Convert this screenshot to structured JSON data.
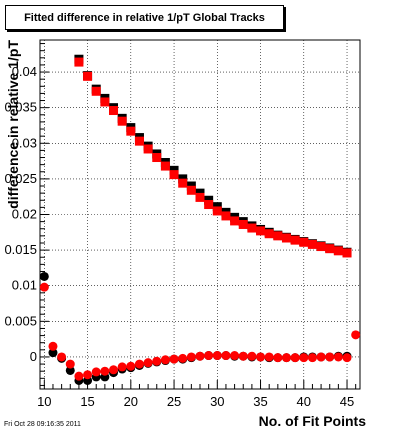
{
  "title": "Fitted difference in relative 1/pT  Global Tracks",
  "footer": "Fri Oct 28 09:16:35 2011",
  "chart_data": {
    "type": "scatter",
    "title": "Fitted difference in relative 1/pT  Global Tracks",
    "xlabel": "No. of Fit Points",
    "ylabel": "difference in relative 1/pT",
    "xlim": [
      9.5,
      46.5
    ],
    "ylim": [
      -0.0045,
      0.0445
    ],
    "xticks": [
      10,
      15,
      20,
      25,
      30,
      35,
      40,
      45
    ],
    "yticks": [
      0,
      0.005,
      0.01,
      0.015,
      0.02,
      0.025,
      0.03,
      0.035,
      0.04
    ],
    "ytick_labels": [
      "0",
      "0.005",
      "0.01",
      "0.015",
      "0.02",
      "0.025",
      "0.03",
      "0.035",
      "0.04"
    ],
    "grid": true,
    "colors": {
      "black": "#000000",
      "red": "#ff0000"
    },
    "series": [
      {
        "color": "black",
        "marker": "square",
        "x": [
          14,
          15,
          16,
          17,
          18,
          19,
          20,
          21,
          22,
          23,
          24,
          25,
          26,
          27,
          28,
          29,
          30,
          31,
          32,
          33,
          34,
          35,
          36,
          37,
          38,
          39,
          40,
          41,
          42,
          43,
          44,
          45
        ],
        "y": [
          0.0418,
          0.0395,
          0.0376,
          0.0363,
          0.035,
          0.0335,
          0.0322,
          0.0308,
          0.0296,
          0.0285,
          0.0273,
          0.0262,
          0.025,
          0.024,
          0.023,
          0.022,
          0.0211,
          0.0203,
          0.0196,
          0.019,
          0.0184,
          0.0179,
          0.0175,
          0.0171,
          0.0168,
          0.0165,
          0.0162,
          0.0159,
          0.0156,
          0.0153,
          0.015,
          0.0147
        ]
      },
      {
        "color": "red",
        "marker": "square",
        "x": [
          14,
          15,
          16,
          17,
          18,
          19,
          20,
          21,
          22,
          23,
          24,
          25,
          26,
          27,
          28,
          29,
          30,
          31,
          32,
          33,
          34,
          35,
          36,
          37,
          38,
          39,
          40,
          41,
          42,
          43,
          44,
          45
        ],
        "y": [
          0.0414,
          0.0394,
          0.0373,
          0.0358,
          0.0346,
          0.0331,
          0.0317,
          0.0303,
          0.0292,
          0.028,
          0.0268,
          0.0256,
          0.0244,
          0.0234,
          0.0224,
          0.0214,
          0.0205,
          0.0198,
          0.0191,
          0.0186,
          0.0181,
          0.0177,
          0.0173,
          0.017,
          0.0167,
          0.0164,
          0.0161,
          0.0158,
          0.0155,
          0.0152,
          0.0149,
          0.0146
        ]
      },
      {
        "color": "black",
        "marker": "circle",
        "x": [
          10,
          11,
          12,
          13,
          14,
          15,
          16,
          17,
          18,
          19,
          20,
          21,
          22,
          23,
          24,
          25,
          26,
          27,
          28,
          29,
          30,
          31,
          32,
          33,
          34,
          35,
          36,
          37,
          38,
          39,
          40,
          41,
          42,
          43,
          44,
          45
        ],
        "y": [
          0.0113,
          0.0006,
          -0.0002,
          -0.0019,
          -0.0033,
          -0.0033,
          -0.0028,
          -0.0028,
          -0.0022,
          -0.0017,
          -0.0015,
          -0.0012,
          -0.0009,
          -0.0007,
          -0.0005,
          -0.0003,
          -0.0003,
          -0.0001,
          0.0001,
          0.0002,
          0.0002,
          0.0002,
          0.0001,
          0.0001,
          0.0,
          0.0,
          -0.0001,
          -0.0001,
          -0.0001,
          -0.0001,
          0.0,
          0.0,
          0.0,
          0.0,
          0.0001,
          0.0001
        ]
      },
      {
        "color": "red",
        "marker": "circle",
        "x": [
          10,
          11,
          12,
          13,
          14,
          15,
          16,
          17,
          18,
          19,
          20,
          21,
          22,
          23,
          24,
          25,
          26,
          27,
          28,
          29,
          30,
          31,
          32,
          33,
          34,
          35,
          36,
          37,
          38,
          39,
          40,
          41,
          42,
          43,
          44,
          45,
          46
        ],
        "y": [
          0.0098,
          0.0015,
          0.0,
          -0.001,
          -0.0027,
          -0.0025,
          -0.0021,
          -0.002,
          -0.0018,
          -0.0014,
          -0.0013,
          -0.001,
          -0.0008,
          -0.0006,
          -0.0004,
          -0.0003,
          -0.0002,
          0.0,
          0.0001,
          0.0002,
          0.0002,
          0.0002,
          0.0002,
          0.0001,
          0.0001,
          0.0,
          0.0,
          -0.0001,
          -0.0001,
          -0.0001,
          -0.0001,
          -0.0001,
          0.0,
          0.0,
          0.0,
          -0.0001,
          0.0031
        ]
      }
    ]
  }
}
